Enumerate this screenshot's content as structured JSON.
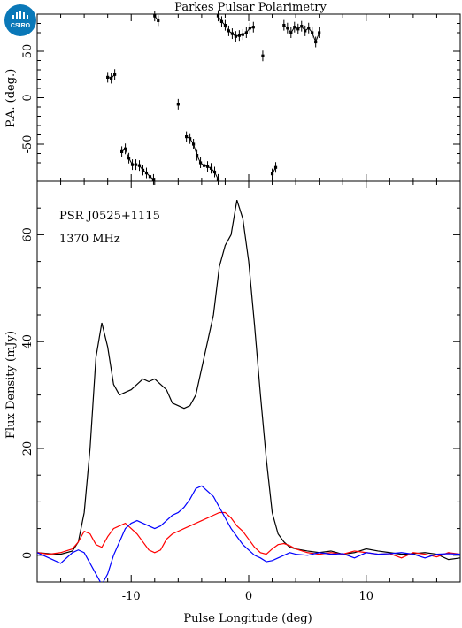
{
  "chart_data": {
    "title": "Parkes Pulsar Polarimetry",
    "logo": "CSIRO",
    "xlabel": "Pulse Longitude (deg)",
    "xlim": [
      -18,
      18
    ],
    "x_ticks": [
      -10,
      0,
      10
    ],
    "panels": [
      {
        "id": "pa",
        "type": "scatter",
        "ylabel": "P.A. (deg.)",
        "ylim": [
          -90,
          90
        ],
        "y_ticks": [
          -50,
          0,
          50
        ],
        "points": [
          [
            -12.0,
            22
          ],
          [
            -11.7,
            21
          ],
          [
            -11.4,
            25
          ],
          [
            -10.8,
            -58
          ],
          [
            -10.5,
            -55
          ],
          [
            -10.2,
            -65
          ],
          [
            -9.9,
            -72
          ],
          [
            -9.6,
            -72
          ],
          [
            -9.3,
            -73
          ],
          [
            -9.0,
            -78
          ],
          [
            -8.7,
            -81
          ],
          [
            -8.4,
            -85
          ],
          [
            -8.1,
            -88
          ],
          [
            -8.0,
            88
          ],
          [
            -7.7,
            83
          ],
          [
            -6.0,
            -7
          ],
          [
            -5.3,
            -42
          ],
          [
            -5.0,
            -44
          ],
          [
            -4.7,
            -50
          ],
          [
            -4.4,
            -62
          ],
          [
            -4.1,
            -70
          ],
          [
            -3.8,
            -73
          ],
          [
            -3.5,
            -74
          ],
          [
            -3.2,
            -76
          ],
          [
            -2.9,
            -80
          ],
          [
            -2.6,
            -88
          ],
          [
            -2.6,
            88
          ],
          [
            -2.3,
            82
          ],
          [
            -2.0,
            78
          ],
          [
            -1.7,
            72
          ],
          [
            -1.4,
            69
          ],
          [
            -1.1,
            66
          ],
          [
            -0.8,
            67
          ],
          [
            -0.5,
            68
          ],
          [
            -0.2,
            70
          ],
          [
            0.1,
            75
          ],
          [
            0.4,
            76
          ],
          [
            1.2,
            45
          ],
          [
            2.0,
            -82
          ],
          [
            2.3,
            -75
          ],
          [
            3.0,
            78
          ],
          [
            3.3,
            75
          ],
          [
            3.6,
            70
          ],
          [
            3.9,
            76
          ],
          [
            4.2,
            74
          ],
          [
            4.5,
            77
          ],
          [
            4.8,
            72
          ],
          [
            5.1,
            75
          ],
          [
            5.4,
            70
          ],
          [
            5.7,
            60
          ],
          [
            6.0,
            70
          ]
        ]
      },
      {
        "id": "profile",
        "type": "line",
        "ylabel": "Flux Density (mJy)",
        "ylim": [
          -5,
          70
        ],
        "y_ticks": [
          0,
          20,
          40,
          60
        ],
        "annotations": [
          "PSR J0525+1115",
          "1370 MHz"
        ],
        "x": [
          -18.0,
          -17.0,
          -16.0,
          -15.0,
          -14.5,
          -14.0,
          -13.5,
          -13.0,
          -12.5,
          -12.0,
          -11.5,
          -11.0,
          -10.5,
          -10.0,
          -9.5,
          -9.0,
          -8.5,
          -8.0,
          -7.5,
          -7.0,
          -6.5,
          -6.0,
          -5.5,
          -5.0,
          -4.5,
          -4.0,
          -3.5,
          -3.0,
          -2.5,
          -2.0,
          -1.5,
          -1.0,
          -0.5,
          0.0,
          0.5,
          1.0,
          1.5,
          2.0,
          2.5,
          3.0,
          3.5,
          4.0,
          5.0,
          6.0,
          7.0,
          8.0,
          9.0,
          10.0,
          11.0,
          12.0,
          13.0,
          14.0,
          15.0,
          16.0,
          17.0,
          18.0
        ],
        "series": [
          {
            "color": "#000000",
            "values": [
              0.5,
              0.3,
              0.2,
              0.8,
              2.5,
              8,
              20,
              37,
              43.5,
              39,
              32,
              30,
              30.5,
              31,
              32,
              33,
              32.5,
              33,
              32,
              31,
              28.5,
              28,
              27.5,
              28,
              30,
              35,
              40,
              45,
              54,
              58,
              60,
              66.5,
              63,
              55,
              43,
              30,
              18,
              8,
              4,
              2.5,
              1.5,
              1.2,
              0.8,
              0.5,
              0.8,
              0.2,
              0.5,
              1.2,
              0.8,
              0.5,
              0.2,
              0.3,
              0.5,
              0.2,
              -0.8,
              -0.5
            ]
          },
          {
            "color": "#ff0000",
            "values": [
              0.5,
              0.2,
              0.5,
              1.2,
              2.5,
              4.5,
              4,
              2,
              1.5,
              3.5,
              5,
              5.5,
              6,
              5,
              4,
              2.5,
              1,
              0.5,
              1,
              3,
              4,
              4.5,
              5,
              5.5,
              6,
              6.5,
              7,
              7.5,
              8,
              8,
              7,
              5.5,
              4.5,
              3,
              1.5,
              0.5,
              0.2,
              1.2,
              2,
              2.2,
              1.8,
              1.2,
              0.5,
              0.2,
              0.5,
              0.2,
              0.8,
              0.5,
              0.2,
              0.3,
              -0.5,
              0.5,
              0.2,
              -0.3,
              0.5,
              0.2
            ]
          },
          {
            "color": "#0000ff",
            "values": [
              0.5,
              -0.5,
              -1.5,
              0.5,
              1,
              0.5,
              -1.5,
              -3.5,
              -5.5,
              -3.5,
              0,
              2.5,
              5,
              6,
              6.5,
              6,
              5.5,
              5,
              5.5,
              6.5,
              7.5,
              8,
              9,
              10.5,
              12.5,
              13,
              12,
              11,
              9,
              7,
              5,
              3.5,
              2,
              1,
              0,
              -0.5,
              -1.2,
              -1,
              -0.5,
              0,
              0.5,
              0.2,
              0,
              0.5,
              0.2,
              0.3,
              -0.5,
              0.5,
              0.2,
              0.3,
              0.5,
              0.2,
              -0.5,
              0.2,
              0.3,
              0.2
            ]
          }
        ]
      }
    ]
  }
}
